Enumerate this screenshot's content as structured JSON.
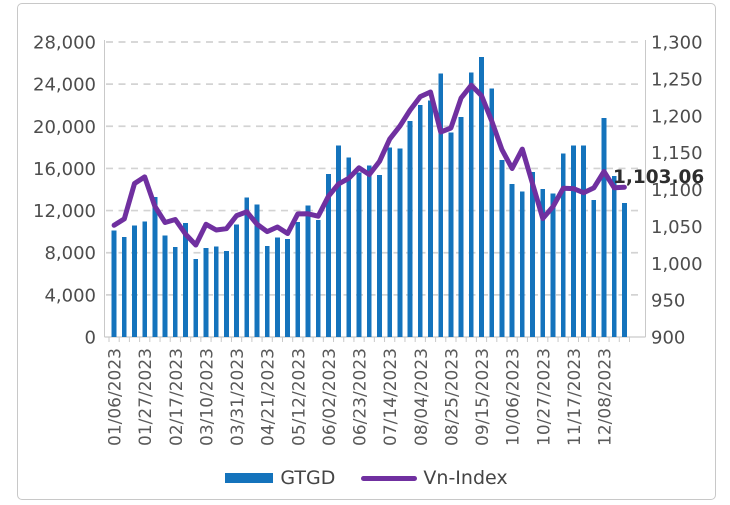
{
  "chart_data": {
    "type": "combo",
    "title": "",
    "grid": "horizontal-dashed",
    "x": [
      "01/06/2023",
      "01/13/2023",
      "01/20/2023",
      "01/27/2023",
      "02/03/2023",
      "02/10/2023",
      "02/17/2023",
      "02/24/2023",
      "03/03/2023",
      "03/10/2023",
      "03/17/2023",
      "03/24/2023",
      "03/31/2023",
      "04/07/2023",
      "04/14/2023",
      "04/21/2023",
      "04/28/2023",
      "05/05/2023",
      "05/12/2023",
      "05/19/2023",
      "05/26/2023",
      "06/02/2023",
      "06/09/2023",
      "06/16/2023",
      "06/23/2023",
      "06/30/2023",
      "07/07/2023",
      "07/14/2023",
      "07/21/2023",
      "07/28/2023",
      "08/04/2023",
      "08/11/2023",
      "08/18/2023",
      "08/25/2023",
      "09/01/2023",
      "09/08/2023",
      "09/15/2023",
      "09/22/2023",
      "09/29/2023",
      "10/06/2023",
      "10/13/2023",
      "10/20/2023",
      "10/27/2023",
      "11/03/2023",
      "11/10/2023",
      "11/17/2023",
      "11/24/2023",
      "12/01/2023",
      "12/08/2023",
      "12/15/2023",
      "12/22/2023"
    ],
    "x_label_every": 3,
    "x_tick_labels_shown": [
      "01/06/2023",
      "01/27/2023",
      "02/17/2023",
      "03/10/2023",
      "03/31/2023",
      "04/21/2023",
      "05/12/2023",
      "06/02/2023",
      "06/23/2023",
      "07/14/2023",
      "08/04/2023",
      "08/25/2023",
      "09/15/2023",
      "10/06/2023",
      "10/27/2023",
      "11/17/2023",
      "12/08/2023"
    ],
    "series": [
      {
        "name": "GTGD",
        "type": "bar",
        "axis": "left",
        "color": "#1473BC",
        "values": [
          10100,
          9500,
          10600,
          10950,
          13300,
          9650,
          8550,
          10800,
          7400,
          8450,
          8600,
          8150,
          10700,
          13250,
          12600,
          8650,
          9450,
          9300,
          10900,
          12500,
          11100,
          15450,
          18200,
          17050,
          15600,
          16300,
          15400,
          18000,
          17900,
          20500,
          22000,
          22450,
          25000,
          19400,
          20900,
          25100,
          26600,
          23600,
          16800,
          14500,
          13800,
          15650,
          14050,
          13600,
          17400,
          18200,
          18200,
          13000,
          20800,
          15300,
          12700
        ]
      },
      {
        "name": "Vn-Index",
        "type": "line",
        "axis": "right",
        "color": "#7030A0",
        "values": [
          1051.44,
          1060.17,
          1108.08,
          1117.1,
          1077.15,
          1055.3,
          1059.31,
          1039.56,
          1024.77,
          1052.8,
          1045.14,
          1046.79,
          1064.64,
          1069.71,
          1052.89,
          1042.91,
          1049.12,
          1040.31,
          1066.9,
          1067.07,
          1063.76,
          1090.84,
          1107.53,
          1115.22,
          1129.38,
          1120.18,
          1138.07,
          1168.4,
          1185.9,
          1207.67,
          1225.98,
          1232.21,
          1177.99,
          1183.37,
          1224.05,
          1241.48,
          1227.36,
          1193.05,
          1154.15,
          1128.54,
          1154.73,
          1108.03,
          1060.62,
          1076.78,
          1101.68,
          1101.19,
          1095.61,
          1102.16,
          1124.44,
          1102.3,
          1103.06
        ]
      }
    ],
    "left_axis": {
      "min": 0,
      "max": 28000,
      "step": 4000,
      "tick_labels": [
        "0",
        "4,000",
        "8,000",
        "12,000",
        "16,000",
        "20,000",
        "24,000",
        "28,000"
      ]
    },
    "right_axis": {
      "min": 900,
      "max": 1300,
      "step": 50,
      "tick_labels": [
        "900",
        "950",
        "1,000",
        "1,050",
        "1,100",
        "1,150",
        "1,200",
        "1,250",
        "1,300"
      ]
    },
    "annotation": {
      "text": "1,103.06",
      "value": 1103.06,
      "series": "Vn-Index"
    },
    "legend": {
      "position": "bottom",
      "entries": [
        "GTGD",
        "Vn-Index"
      ]
    }
  },
  "colors": {
    "bar": "#1473BC",
    "line": "#7030A0",
    "gridline": "#d3d3d3",
    "axis_line": "#c9c9c9",
    "axis_text": "#4d4d4d",
    "x_text": "#595959",
    "annotation_text": "#2d2d2d",
    "card_border": "#c8c8c8"
  }
}
